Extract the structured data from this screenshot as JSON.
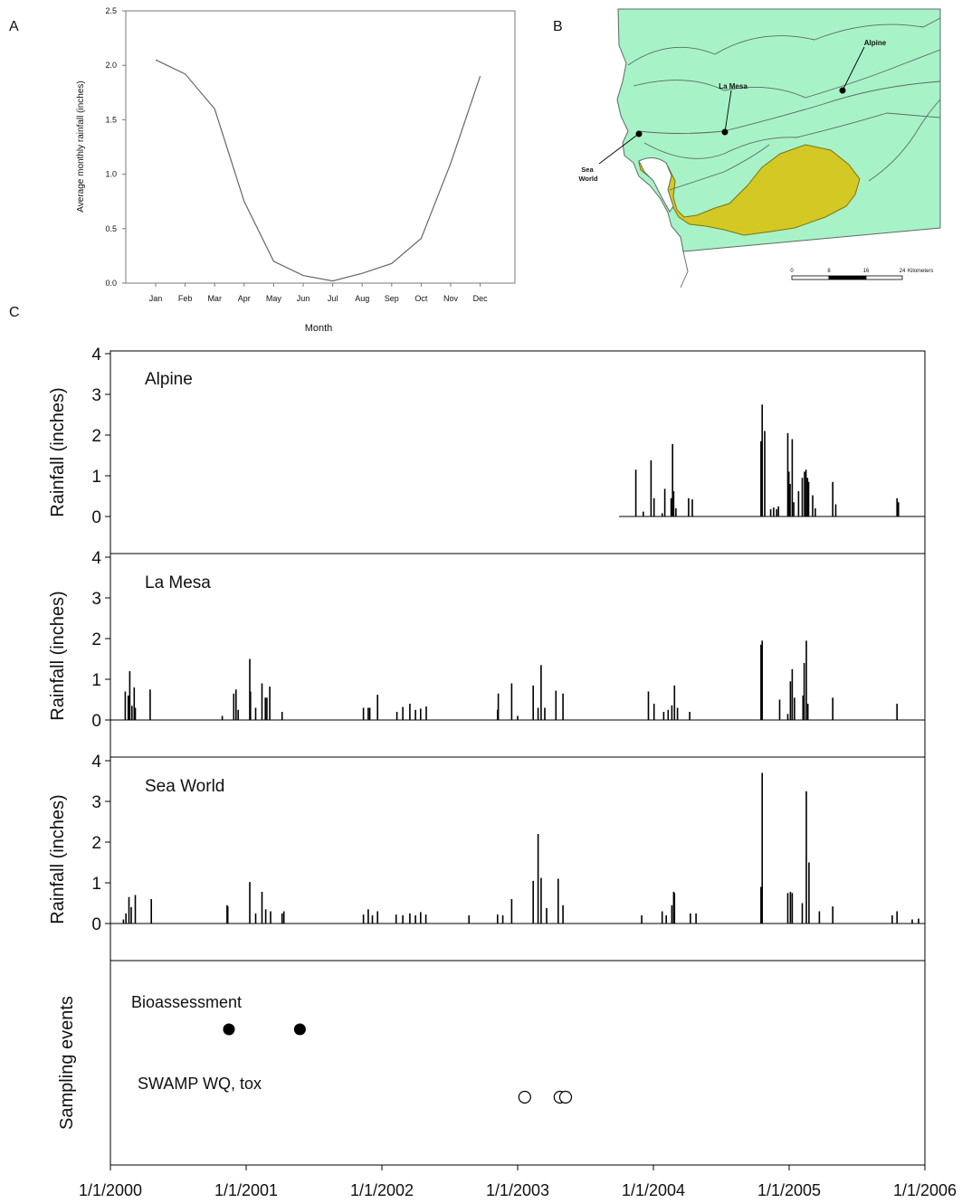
{
  "panel_labels": {
    "a": "A",
    "b": "B",
    "c": "C"
  },
  "panel_a": {
    "ylabel": "Average monthly rainfall (inches)",
    "xlabel": "Month",
    "yticks": [
      "0.0",
      "0.5",
      "1.0",
      "1.5",
      "2.0",
      "2.5"
    ]
  },
  "panel_b": {
    "stations": [
      "Alpine",
      "La Mesa",
      "Sea World"
    ],
    "scale_ticks": [
      "0",
      "8",
      "16",
      "24"
    ],
    "scale_unit": "Kilometers",
    "colors": {
      "land": "#a8f2c8",
      "watershed": "#d4c825",
      "water": "#ffffff",
      "lines": "#5a6b64"
    }
  },
  "panel_c": {
    "ylabel": "Rainfall (inches)",
    "yticks": [
      "0",
      "1",
      "2",
      "3",
      "4"
    ],
    "sampling_label": "Sampling events",
    "bio_label": "Bioassessment",
    "swamp_label": "SWAMP WQ, tox",
    "xticks": [
      "1/1/2000",
      "1/1/2001",
      "1/1/2002",
      "1/1/2003",
      "1/1/2004",
      "1/1/2005",
      "1/1/2006"
    ]
  },
  "chart_data": [
    {
      "type": "line",
      "categories": [
        "Jan",
        "Feb",
        "Mar",
        "Apr",
        "May",
        "Jun",
        "Jul",
        "Aug",
        "Sep",
        "Oct",
        "Nov",
        "Dec"
      ],
      "values": [
        2.05,
        1.92,
        1.6,
        0.75,
        0.2,
        0.07,
        0.02,
        0.09,
        0.18,
        0.41,
        1.1,
        1.9
      ],
      "xlabel": "Month",
      "ylabel": "Average monthly rainfall (inches)",
      "ylim": [
        0,
        2.5
      ],
      "grid": false
    },
    {
      "type": "bar",
      "title": "Alpine",
      "ylabel": "Rainfall (inches)",
      "ylim": [
        0,
        4
      ],
      "x": [
        "2003-11-15",
        "2003-12-05",
        "2003-12-26",
        "2004-01-03",
        "2004-01-25",
        "2004-02-01",
        "2004-02-18",
        "2004-02-22",
        "2004-02-25",
        "2004-03-02",
        "2004-04-05",
        "2004-04-15",
        "2004-10-17",
        "2004-10-20",
        "2004-10-27",
        "2004-11-12",
        "2004-11-20",
        "2004-11-28",
        "2004-12-03",
        "2004-12-28",
        "2004-12-31",
        "2005-01-03",
        "2005-01-09",
        "2005-01-13",
        "2005-01-26",
        "2005-02-05",
        "2005-02-11",
        "2005-02-15",
        "2005-02-19",
        "2005-02-22",
        "2005-03-05",
        "2005-03-12",
        "2005-04-28",
        "2005-05-06",
        "2005-10-18",
        "2005-10-22"
      ],
      "values": [
        1.15,
        0.12,
        1.38,
        0.45,
        0.08,
        0.68,
        0.45,
        1.78,
        0.62,
        0.2,
        0.45,
        0.42,
        1.85,
        2.75,
        2.1,
        0.18,
        0.22,
        0.18,
        0.25,
        2.05,
        1.1,
        0.8,
        1.9,
        0.35,
        0.62,
        0.95,
        1.1,
        1.15,
        0.95,
        0.85,
        0.52,
        0.2,
        0.85,
        0.3,
        0.45,
        0.35
      ],
      "record_start": "2003-10-01"
    },
    {
      "type": "bar",
      "title": "La Mesa",
      "ylabel": "Rainfall (inches)",
      "ylim": [
        0,
        4
      ],
      "x": [
        "2000-02-10",
        "2000-02-18",
        "2000-02-22",
        "2000-02-28",
        "2000-03-05",
        "2000-03-08",
        "2000-04-17",
        "2000-10-28",
        "2000-11-28",
        "2000-12-04",
        "2000-12-10",
        "2001-01-10",
        "2001-01-12",
        "2001-01-26",
        "2001-02-12",
        "2001-02-21",
        "2001-02-25",
        "2001-03-05",
        "2001-04-07",
        "2001-11-12",
        "2001-11-25",
        "2001-11-29",
        "2001-12-20",
        "2002-02-10",
        "2002-02-26",
        "2002-03-17",
        "2002-04-01",
        "2002-04-15",
        "2002-04-30",
        "2002-11-08",
        "2002-11-10",
        "2002-12-16",
        "2003-01-01",
        "2003-02-12",
        "2003-02-25",
        "2003-03-05",
        "2003-03-15",
        "2003-04-14",
        "2003-05-03",
        "2003-12-19",
        "2004-01-03",
        "2004-01-29",
        "2004-02-10",
        "2004-02-20",
        "2004-02-27",
        "2004-03-06",
        "2004-04-08",
        "2004-10-17",
        "2004-10-20",
        "2004-12-06",
        "2004-12-28",
        "2005-01-04",
        "2005-01-09",
        "2005-01-15",
        "2005-02-07",
        "2005-02-10",
        "2005-02-16",
        "2005-02-20",
        "2005-04-28",
        "2005-10-18"
      ],
      "values": [
        0.7,
        0.6,
        1.2,
        0.35,
        0.8,
        0.3,
        0.75,
        0.1,
        0.65,
        0.75,
        0.25,
        1.5,
        0.7,
        0.3,
        0.9,
        0.55,
        0.55,
        0.82,
        0.2,
        0.3,
        0.3,
        0.3,
        0.62,
        0.2,
        0.32,
        0.4,
        0.25,
        0.28,
        0.33,
        0.25,
        0.65,
        0.9,
        0.1,
        0.85,
        0.3,
        1.35,
        0.3,
        0.72,
        0.65,
        0.7,
        0.4,
        0.2,
        0.25,
        0.36,
        0.85,
        0.3,
        0.2,
        1.85,
        1.95,
        0.5,
        0.15,
        0.95,
        1.25,
        0.55,
        0.6,
        1.4,
        1.95,
        0.4,
        0.55,
        0.4
      ]
    },
    {
      "type": "bar",
      "title": "Sea World",
      "ylabel": "Rainfall (inches)",
      "ylim": [
        0,
        4
      ],
      "x": [
        "2000-02-05",
        "2000-02-12",
        "2000-02-20",
        "2000-02-26",
        "2000-03-08",
        "2000-04-20",
        "2000-11-10",
        "2000-11-12",
        "2001-01-10",
        "2001-01-26",
        "2001-02-12",
        "2001-02-22",
        "2001-03-07",
        "2001-04-07",
        "2001-04-12",
        "2001-11-12",
        "2001-11-25",
        "2001-12-06",
        "2001-12-20",
        "2002-02-08",
        "2002-02-26",
        "2002-03-17",
        "2002-04-01",
        "2002-04-15",
        "2002-04-29",
        "2002-08-23",
        "2002-11-08",
        "2002-11-22",
        "2002-12-16",
        "2003-02-12",
        "2003-02-25",
        "2003-03-05",
        "2003-03-20",
        "2003-04-20",
        "2003-05-03",
        "2003-12-01",
        "2004-01-25",
        "2004-02-05",
        "2004-02-20",
        "2004-02-25",
        "2004-02-27",
        "2004-04-10",
        "2004-04-25",
        "2004-10-17",
        "2004-10-20",
        "2004-12-28",
        "2005-01-04",
        "2005-01-09",
        "2005-02-05",
        "2005-02-16",
        "2005-02-23",
        "2005-03-23",
        "2005-04-28",
        "2005-10-05",
        "2005-10-18",
        "2005-11-28",
        "2005-12-15"
      ],
      "values": [
        0.1,
        0.25,
        0.65,
        0.4,
        0.7,
        0.6,
        0.45,
        0.42,
        1.02,
        0.25,
        0.78,
        0.35,
        0.3,
        0.25,
        0.3,
        0.22,
        0.35,
        0.2,
        0.3,
        0.22,
        0.2,
        0.25,
        0.2,
        0.28,
        0.22,
        0.2,
        0.22,
        0.2,
        0.6,
        1.05,
        2.2,
        1.12,
        0.38,
        1.1,
        0.45,
        0.2,
        0.3,
        0.2,
        0.45,
        0.78,
        0.75,
        0.25,
        0.25,
        0.9,
        3.7,
        0.75,
        0.78,
        0.75,
        0.5,
        3.25,
        1.5,
        0.3,
        0.42,
        0.2,
        0.3,
        0.1,
        0.12
      ]
    },
    {
      "type": "scatter",
      "ylabel": "Sampling events",
      "xlim": [
        "2000-01-01",
        "2006-01-01"
      ],
      "series": [
        {
          "name": "Bioassessment",
          "x": [
            "2000-11-15",
            "2001-05-25"
          ],
          "marker": "filled-circle"
        },
        {
          "name": "SWAMP WQ, tox",
          "x": [
            "2003-01-20",
            "2003-04-25",
            "2003-05-10"
          ],
          "marker": "open-circle"
        }
      ]
    }
  ]
}
